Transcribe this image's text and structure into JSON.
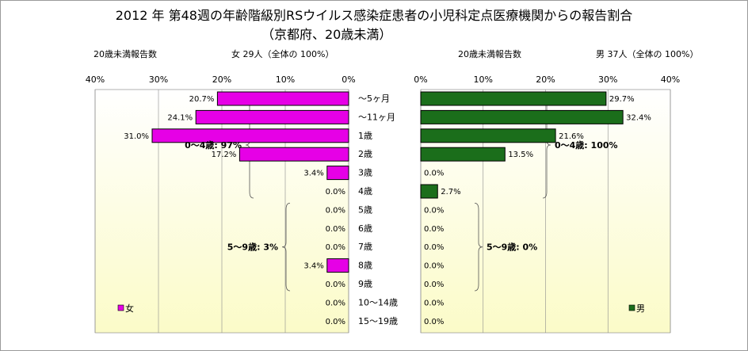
{
  "title": "2012 年 第48週の年齢階級別RSウイルス感染症患者の小児科定点医療機関からの報告割合",
  "subtitle": "（京都府、20歳未満）",
  "left_header": {
    "label": "20歳未満報告数",
    "summary": "女  29人（全体の  100%）"
  },
  "right_header": {
    "label": "20歳未満報告数",
    "summary": "男  37人（全体の  100%）"
  },
  "colors": {
    "female": "#e600e6",
    "male": "#1b6e1b"
  },
  "chart_data": [
    {
      "type": "bar",
      "orientation": "horizontal-reversed",
      "series": [
        {
          "name": "女",
          "values": [
            20.7,
            24.1,
            31.0,
            17.2,
            3.4,
            0.0,
            0.0,
            0.0,
            0.0,
            3.4,
            0.0,
            0.0,
            0.0
          ]
        }
      ],
      "categories": [
        "～5ヶ月",
        "～11ヶ月",
        "1歳",
        "2歳",
        "3歳",
        "4歳",
        "5歳",
        "6歳",
        "7歳",
        "8歳",
        "9歳",
        "10～14歳",
        "15～19歳"
      ],
      "value_labels": [
        "20.7%",
        "24.1%",
        "31.0%",
        "17.2%",
        "3.4%",
        "0.0%",
        "0.0%",
        "0.0%",
        "0.0%",
        "3.4%",
        "0.0%",
        "0.0%",
        "0.0%"
      ],
      "ticks": [
        "40%",
        "30%",
        "20%",
        "10%",
        "0%"
      ],
      "xlim": [
        0,
        40
      ],
      "annotations": [
        {
          "text": "0～4歳: 97%",
          "from_index": 0,
          "to_index": 5
        },
        {
          "text": "5～9歳:  3%",
          "from_index": 6,
          "to_index": 10
        }
      ],
      "legend": "女",
      "grid": true
    },
    {
      "type": "bar",
      "orientation": "horizontal",
      "series": [
        {
          "name": "男",
          "values": [
            29.7,
            32.4,
            21.6,
            13.5,
            0.0,
            2.7,
            0.0,
            0.0,
            0.0,
            0.0,
            0.0,
            0.0,
            0.0
          ]
        }
      ],
      "categories": [
        "～5ヶ月",
        "～11ヶ月",
        "1歳",
        "2歳",
        "3歳",
        "4歳",
        "5歳",
        "6歳",
        "7歳",
        "8歳",
        "9歳",
        "10～14歳",
        "15～19歳"
      ],
      "value_labels": [
        "29.7%",
        "32.4%",
        "21.6%",
        "13.5%",
        "0.0%",
        "2.7%",
        "0.0%",
        "0.0%",
        "0.0%",
        "0.0%",
        "0.0%",
        "0.0%",
        "0.0%"
      ],
      "ticks": [
        "0%",
        "10%",
        "20%",
        "30%",
        "40%"
      ],
      "xlim": [
        0,
        40
      ],
      "annotations": [
        {
          "text": "0～4歳: 100%",
          "from_index": 0,
          "to_index": 5
        },
        {
          "text": "5～9歳:   0%",
          "from_index": 6,
          "to_index": 10
        }
      ],
      "legend": "男",
      "grid": true
    }
  ]
}
